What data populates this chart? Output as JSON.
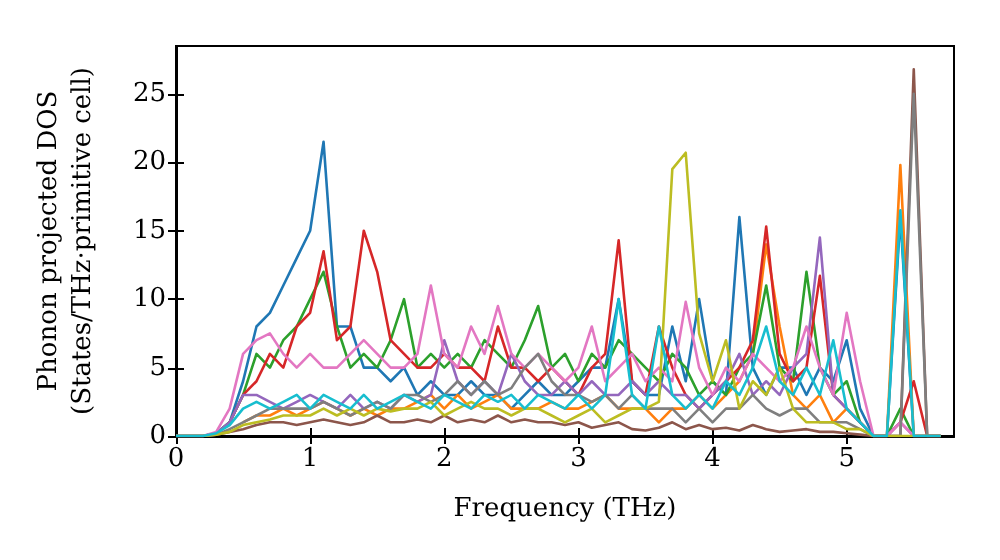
{
  "chart_data": {
    "type": "line",
    "xlabel": "Frequency (THz)",
    "ylabel": "Phonon projected DOS\n(States/THz·primitive cell)",
    "x": [
      0,
      0.1,
      0.2,
      0.3,
      0.4,
      0.5,
      0.6,
      0.7,
      0.8,
      0.9,
      1,
      1.1,
      1.2,
      1.3,
      1.4,
      1.5,
      1.6,
      1.7,
      1.8,
      1.9,
      2,
      2.1,
      2.2,
      2.3,
      2.4,
      2.5,
      2.6,
      2.7,
      2.8,
      2.9,
      3,
      3.1,
      3.2,
      3.3,
      3.4,
      3.5,
      3.6,
      3.7,
      3.8,
      3.9,
      4,
      4.1,
      4.2,
      4.3,
      4.4,
      4.5,
      4.6,
      4.7,
      4.8,
      4.9,
      5,
      5.1,
      5.2,
      5.3,
      5.4,
      5.5,
      5.6,
      5.7
    ],
    "xlim": [
      0,
      5.8
    ],
    "ylim": [
      0,
      28.5
    ],
    "xticks": [
      0,
      1,
      2,
      3,
      4,
      5
    ],
    "yticks": [
      0,
      5,
      10,
      15,
      20,
      25
    ],
    "grid": false,
    "marker": "none",
    "line_style": "solid",
    "series": [
      {
        "color": "#1f77b4",
        "values": [
          0,
          0,
          0,
          0.2,
          1,
          4,
          8,
          9,
          11,
          13,
          15,
          21.5,
          8,
          8,
          5,
          5,
          4,
          5,
          3,
          4,
          3,
          3,
          4,
          3,
          3,
          2,
          3,
          4,
          3,
          3,
          4,
          5,
          5,
          10,
          4,
          3,
          3,
          8,
          4,
          10,
          4,
          3,
          16,
          5,
          3,
          5,
          5,
          3,
          5,
          4,
          7,
          2,
          0,
          0,
          16,
          0,
          0,
          0
        ]
      },
      {
        "color": "#ff7f0e",
        "values": [
          null,
          null,
          null,
          null,
          null,
          1,
          1.5,
          1.5,
          2,
          1.5,
          2,
          2.5,
          2,
          1.5,
          2,
          1.5,
          2,
          2,
          2.5,
          3,
          2,
          3,
          2,
          2.5,
          3,
          2,
          2,
          2,
          2.5,
          2,
          2,
          2.5,
          3,
          2,
          2,
          2,
          1,
          2,
          2,
          3,
          2,
          3,
          4,
          6,
          14,
          8,
          3,
          2,
          3,
          1,
          2,
          1,
          0,
          0,
          19.8,
          0,
          0,
          0
        ]
      },
      {
        "color": "#2ca02c",
        "values": [
          0,
          0,
          0,
          0.2,
          1,
          3,
          6,
          5,
          7,
          8,
          10,
          12,
          8,
          5,
          6,
          5,
          7,
          10,
          5,
          6,
          5,
          6,
          5,
          7,
          6,
          5,
          7,
          9.5,
          5,
          6,
          4,
          6,
          5,
          7,
          6,
          5,
          4,
          6,
          5,
          3,
          4,
          3,
          5,
          6,
          11,
          5,
          4,
          12,
          5,
          3,
          4,
          1,
          0,
          0,
          2,
          0,
          0,
          0
        ]
      },
      {
        "color": "#d62728",
        "values": [
          null,
          null,
          null,
          null,
          1,
          3,
          4,
          6,
          5,
          8,
          9,
          13.5,
          7,
          8,
          15,
          12,
          7,
          6,
          5,
          5,
          6,
          5,
          5,
          4,
          8,
          5,
          5,
          4,
          5,
          4,
          3,
          5,
          6,
          14.3,
          4,
          3,
          8,
          5,
          3,
          2,
          3,
          4,
          5,
          7,
          15.3,
          6,
          4,
          5,
          11.7,
          3,
          2,
          1,
          0,
          0,
          1,
          4,
          0,
          0
        ]
      },
      {
        "color": "#9467bd",
        "values": [
          0,
          0,
          0,
          0.2,
          1,
          3,
          3,
          2.5,
          2,
          2.5,
          3,
          2.5,
          2,
          3,
          2,
          2.5,
          2,
          3,
          2.5,
          3,
          7,
          4,
          3,
          4,
          3,
          6,
          4,
          3,
          3,
          4,
          3,
          4,
          3,
          3,
          4,
          3,
          4,
          3,
          3,
          2,
          3,
          4,
          6,
          3,
          4,
          3,
          5,
          6,
          14.5,
          3,
          2,
          1,
          0,
          0,
          1,
          0,
          0,
          0
        ]
      },
      {
        "color": "#8c564b",
        "values": [
          0,
          0,
          0,
          0.1,
          0.3,
          0.5,
          0.8,
          1,
          1,
          0.8,
          1,
          1.2,
          1,
          0.8,
          1,
          1.5,
          1,
          1,
          1.2,
          1,
          1.5,
          1,
          1.2,
          1,
          1.5,
          1,
          1.2,
          1,
          1,
          0.8,
          1,
          0.6,
          0.8,
          1,
          0.5,
          0.4,
          0.6,
          1,
          0.5,
          0.8,
          0.5,
          0.6,
          0.4,
          0.8,
          0.5,
          0.3,
          0.4,
          0.5,
          0.3,
          0.3,
          0.2,
          0.1,
          0,
          0,
          0,
          26.8,
          0,
          0
        ]
      },
      {
        "color": "#e377c2",
        "values": [
          0,
          0,
          0,
          0.3,
          2,
          6,
          7,
          7.5,
          6,
          5,
          6,
          5,
          5,
          6,
          7,
          6,
          5,
          5,
          6,
          11,
          6,
          5,
          8,
          6,
          9.5,
          6,
          5,
          6,
          5,
          4,
          5,
          8,
          4,
          5,
          6,
          4,
          5,
          4,
          9.8,
          5,
          3,
          5,
          4,
          6,
          5,
          4,
          5,
          8,
          5,
          3,
          9,
          4,
          0,
          0,
          1,
          0,
          0,
          0
        ]
      },
      {
        "color": "#7f7f7f",
        "values": [
          0,
          0,
          0,
          0.1,
          0.5,
          1,
          1.5,
          2,
          2,
          2,
          2,
          2.5,
          2,
          1.5,
          2,
          2.5,
          2,
          3,
          3,
          2.5,
          3,
          4,
          3,
          4,
          3,
          3.5,
          5,
          6,
          4,
          3,
          3,
          2.5,
          3,
          2,
          3,
          2,
          2,
          2,
          1,
          2,
          1,
          2,
          2,
          3,
          2,
          1.5,
          2,
          2,
          1,
          1,
          1,
          0.5,
          0,
          0,
          0,
          25,
          0,
          0
        ]
      },
      {
        "color": "#bcbd22",
        "values": [
          0,
          0,
          0,
          0.1,
          0.3,
          0.8,
          1,
          1.2,
          1.5,
          1.5,
          1.5,
          2,
          1.5,
          2,
          1.5,
          2,
          1.8,
          2,
          2,
          2.5,
          1.5,
          2,
          2.5,
          2,
          2,
          1.5,
          2,
          2,
          1.5,
          1,
          1.5,
          2,
          1,
          1.5,
          2,
          2,
          2.5,
          19.5,
          20.7,
          7.5,
          4,
          7,
          2,
          4,
          3,
          5,
          2,
          1,
          1,
          1,
          0.5,
          0.5,
          0,
          0,
          0,
          0,
          0,
          0
        ]
      },
      {
        "color": "#17becf",
        "values": [
          0,
          0,
          0,
          0.2,
          0.8,
          2,
          2.5,
          2,
          2.5,
          3,
          2,
          3,
          2.5,
          2,
          3,
          2,
          2.5,
          3,
          2.5,
          2,
          3,
          2.5,
          2,
          3,
          2.5,
          3,
          2,
          3,
          2.5,
          2,
          3,
          2,
          3,
          10,
          3,
          2,
          8,
          3,
          2,
          3,
          2,
          4,
          3,
          5,
          8,
          4,
          3,
          5,
          3,
          7,
          2,
          1,
          0,
          0,
          16.5,
          0,
          0,
          0
        ]
      }
    ]
  }
}
